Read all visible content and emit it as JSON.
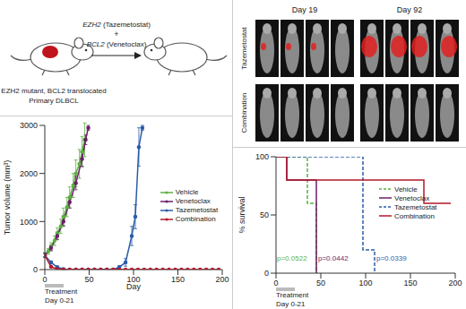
{
  "diagram": {
    "label": "EZH2 mutant, BCL2 translocated",
    "sublabel": "Primary DLBCL",
    "treatment": [
      {
        "gene": "EZH2",
        "drug": "(Tazemetostat)"
      },
      {
        "gene": "BCL2",
        "drug": "(Venetoclax)"
      }
    ],
    "joiner": "+"
  },
  "images": {
    "columns": [
      "Day 19",
      "Day 92"
    ],
    "rows": [
      "Tazemetostat",
      "Combination"
    ]
  },
  "chart_data": [
    {
      "type": "line",
      "x_label": "Day",
      "y_label": "Tumor volume (mm³)",
      "xlim": [
        0,
        200
      ],
      "xticks": [
        0,
        50,
        100,
        150,
        200
      ],
      "ylim": [
        0,
        3000
      ],
      "yticks": [
        0,
        1000,
        2000,
        3000
      ],
      "treatment": {
        "start": 0,
        "end": 21,
        "label": "Treatment",
        "sublabel": "Day 0-21"
      },
      "series": [
        {
          "name": "Vehicle",
          "color": "#5cb040",
          "marker": "circle",
          "line_style": "solid",
          "x": [
            0,
            4,
            7,
            11,
            14,
            18,
            21,
            25,
            28,
            32,
            35,
            39,
            42,
            45
          ],
          "values": [
            300,
            380,
            480,
            600,
            750,
            900,
            1100,
            1300,
            1500,
            1750,
            2000,
            2200,
            2450,
            2700
          ],
          "errors": [
            50,
            60,
            80,
            100,
            120,
            150,
            180,
            200,
            220,
            250,
            280,
            300,
            320,
            350
          ]
        },
        {
          "name": "Venetoclax",
          "color": "#6b1f6b",
          "marker": "circle",
          "line_style": "solid",
          "x": [
            0,
            7,
            14,
            21,
            28,
            35,
            42,
            46,
            49
          ],
          "values": [
            300,
            450,
            700,
            1000,
            1400,
            1800,
            2300,
            2700,
            2950
          ],
          "errors": [
            40,
            60,
            80,
            100,
            120,
            140,
            150,
            100,
            50
          ]
        },
        {
          "name": "Tazemetostat",
          "color": "#2b5ca8",
          "marker": "circle",
          "line_style": "solid",
          "x": [
            0,
            7,
            14,
            21,
            28,
            35,
            42,
            49,
            56,
            63,
            70,
            77,
            84,
            91,
            98,
            102,
            106,
            110
          ],
          "values": [
            300,
            150,
            50,
            10,
            0,
            0,
            0,
            0,
            0,
            0,
            0,
            0,
            50,
            150,
            700,
            1100,
            2550,
            2950
          ],
          "errors": [
            40,
            30,
            20,
            10,
            0,
            0,
            0,
            0,
            0,
            0,
            0,
            0,
            30,
            80,
            200,
            250,
            400,
            50
          ]
        },
        {
          "name": "Combination",
          "color": "#b3182b",
          "marker": "circle",
          "line_style": "solid",
          "x": [
            0,
            7,
            14,
            21,
            28,
            35,
            42,
            49,
            56,
            63,
            70,
            77,
            84,
            91,
            98,
            105,
            112,
            119,
            126,
            133,
            140,
            147,
            154,
            161,
            168,
            175,
            182,
            189,
            196
          ],
          "values": [
            300,
            60,
            10,
            0,
            0,
            0,
            0,
            0,
            0,
            0,
            0,
            0,
            0,
            0,
            0,
            0,
            0,
            0,
            0,
            0,
            0,
            0,
            0,
            0,
            0,
            0,
            0,
            0,
            0
          ]
        }
      ]
    },
    {
      "type": "step",
      "y_label": "% survival",
      "xlim": [
        0,
        200
      ],
      "xticks": [
        0,
        50,
        100,
        150,
        200
      ],
      "ylim": [
        0,
        100
      ],
      "yticks": [
        0,
        50,
        100
      ],
      "treatment": {
        "start": 0,
        "end": 21,
        "label": "Treatment",
        "sublabel": "Day 0-21"
      },
      "annotations": [
        {
          "text": "p=0.0522",
          "color": "#5cb040"
        },
        {
          "text": "p=0.0442",
          "color": "#6b1f6b"
        },
        {
          "text": "p=0.0339",
          "color": "#2b5ca8"
        }
      ],
      "series": [
        {
          "name": "Vehicle",
          "color": "#5cb040",
          "line_style": "dashed",
          "x": [
            0,
            35,
            45
          ],
          "values": [
            100,
            60,
            0
          ]
        },
        {
          "name": "Venetoclax",
          "color": "#6b1f6b",
          "line_style": "solid",
          "x": [
            0,
            12,
            45
          ],
          "values": [
            100,
            80,
            0
          ]
        },
        {
          "name": "Tazemetostat",
          "color": "#2b5ca8",
          "line_style": "dashed",
          "x": [
            0,
            97,
            110
          ],
          "values": [
            100,
            20,
            0
          ]
        },
        {
          "name": "Combination",
          "color": "#b3182b",
          "line_style": "solid",
          "x": [
            0,
            12,
            165,
            195
          ],
          "values": [
            100,
            80,
            60,
            60
          ]
        }
      ]
    }
  ]
}
